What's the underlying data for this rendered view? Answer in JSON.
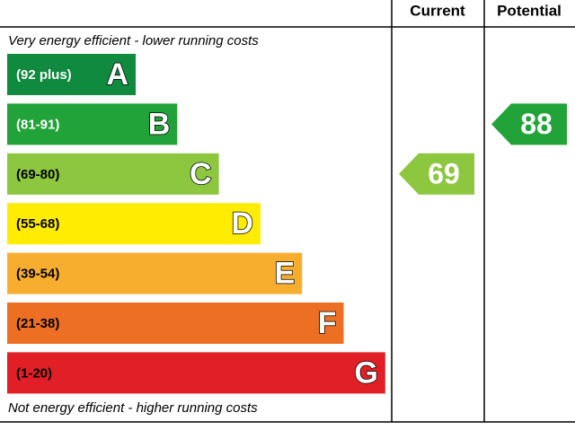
{
  "header": {
    "current": "Current",
    "potential": "Potential"
  },
  "top_note": "Very energy efficient - lower running costs",
  "bottom_note": "Not energy efficient - higher running costs",
  "bands": [
    {
      "range": "(92 plus)",
      "letter": "A",
      "color": "#0f8a3e"
    },
    {
      "range": "(81-91)",
      "letter": "B",
      "color": "#22a33a"
    },
    {
      "range": "(69-80)",
      "letter": "C",
      "color": "#8dc63f"
    },
    {
      "range": "(55-68)",
      "letter": "D",
      "color": "#ffec00"
    },
    {
      "range": "(39-54)",
      "letter": "E",
      "color": "#f7ae2f"
    },
    {
      "range": "(21-38)",
      "letter": "F",
      "color": "#ec6f23"
    },
    {
      "range": "(1-20)",
      "letter": "G",
      "color": "#e11f26"
    }
  ],
  "current": {
    "value": 69
  },
  "potential": {
    "value": 88
  }
}
